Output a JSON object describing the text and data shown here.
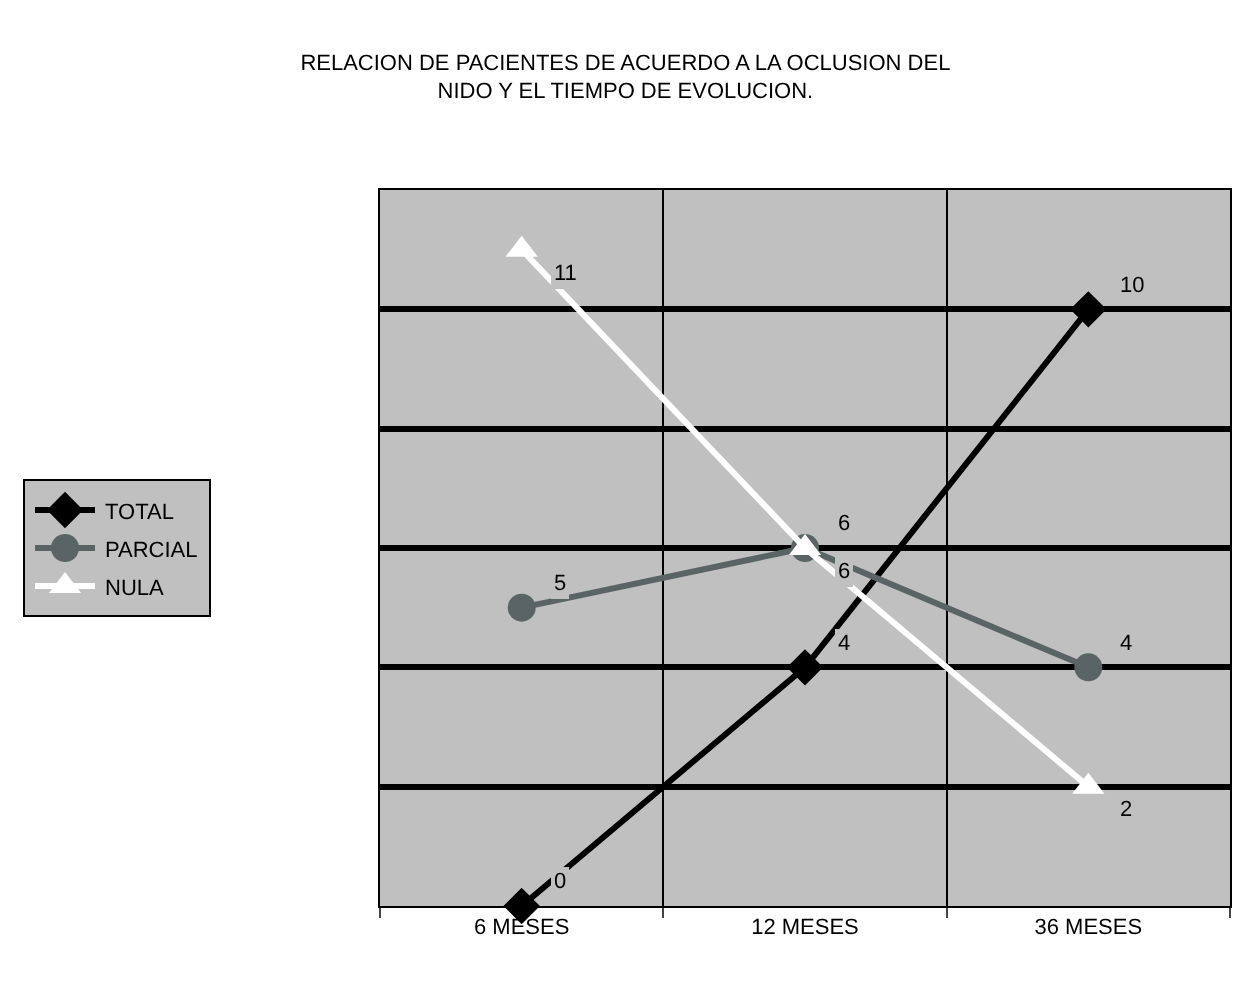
{
  "chart_data": {
    "type": "line",
    "title": "RELACION DE PACIENTES DE ACUERDO A LA OCLUSION DEL\nNIDO Y EL TIEMPO DE EVOLUCION.",
    "categories": [
      "6 MESES",
      "12 MESES",
      "36 MESES"
    ],
    "series": [
      {
        "name": "TOTAL",
        "color": "#000000",
        "marker": "diamond",
        "values": [
          0,
          4,
          10
        ]
      },
      {
        "name": "PARCIAL",
        "color": "#5a6464",
        "marker": "circle",
        "values": [
          5,
          6,
          4
        ]
      },
      {
        "name": "NULA",
        "color": "#ffffff",
        "marker": "triangle",
        "values": [
          11,
          6,
          2
        ]
      }
    ],
    "ylim": [
      0,
      12
    ],
    "yticks": [
      {
        "value": 0,
        "label": null
      },
      {
        "value": 2,
        "label": null
      },
      {
        "value": 4,
        "label": null
      },
      {
        "value": 6,
        "label": null
      },
      {
        "value": 8,
        "label": null
      },
      {
        "value": 10,
        "label": null
      },
      {
        "value": 12,
        "label": null
      }
    ],
    "tick_labels": "x",
    "grid": true,
    "legend": "left",
    "data_labels": true
  }
}
